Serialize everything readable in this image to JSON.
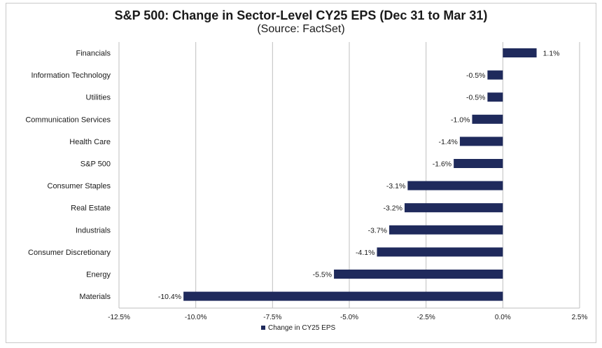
{
  "chart_data": {
    "type": "bar",
    "orientation": "horizontal",
    "title": "S&P 500: Change in Sector-Level CY25 EPS (Dec 31 to Mar 31)",
    "subtitle": "(Source: FactSet)",
    "categories": [
      "Financials",
      "Information Technology",
      "Utilities",
      "Communication Services",
      "Health Care",
      "S&P 500",
      "Consumer Staples",
      "Real Estate",
      "Industrials",
      "Consumer Discretionary",
      "Energy",
      "Materials"
    ],
    "series": [
      {
        "name": "Change in CY25 EPS",
        "values": [
          1.1,
          -0.5,
          -0.5,
          -1.0,
          -1.4,
          -1.6,
          -3.1,
          -3.2,
          -3.7,
          -4.1,
          -5.5,
          -10.4
        ],
        "labels": [
          "1.1%",
          "-0.5%",
          "-0.5%",
          "-1.0%",
          "-1.4%",
          "-1.6%",
          "-3.1%",
          "-3.2%",
          "-3.7%",
          "-4.1%",
          "-5.5%",
          "-10.4%"
        ]
      }
    ],
    "xlim": [
      -12.5,
      2.5
    ],
    "xticks": [
      -12.5,
      -10.0,
      -7.5,
      -5.0,
      -2.5,
      0.0,
      2.5
    ],
    "xtick_labels": [
      "-12.5%",
      "-10.0%",
      "-7.5%",
      "-5.0%",
      "-2.5%",
      "0.0%",
      "2.5%"
    ],
    "grid": "vertical",
    "legend": "bottom-center",
    "bar_color": "#1f2a5c"
  }
}
